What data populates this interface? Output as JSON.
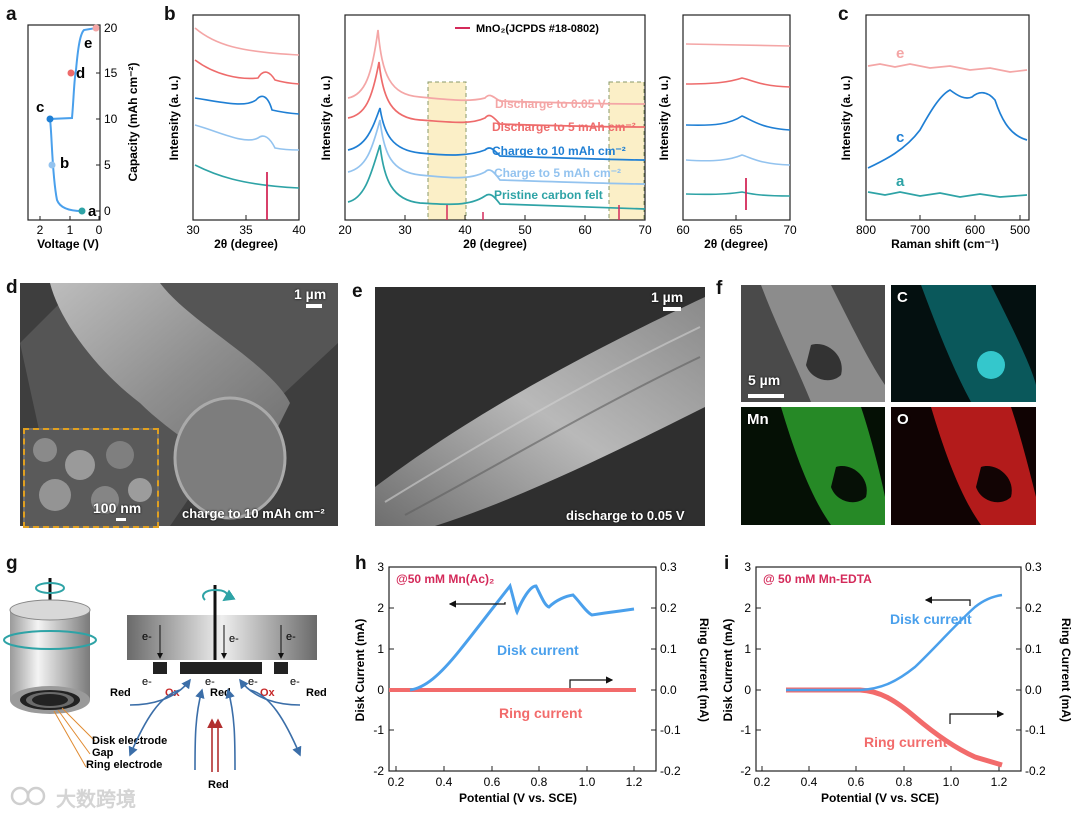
{
  "panels": {
    "a": "a",
    "b": "b",
    "c": "c",
    "d": "d",
    "e": "e",
    "f": "f",
    "g": "g",
    "h": "h",
    "i": "i"
  },
  "colors": {
    "pink": "#f4a6a6",
    "coral": "#ee6b6b",
    "blue": "#1f7fd4",
    "lightblue": "#93c3ef",
    "teal": "#2ea3a6",
    "crimson": "#d42a5a",
    "ring_red": "#f26b6b",
    "disk_blue": "#4aa0ec",
    "highlight": "#fbefc7"
  },
  "panel_a": {
    "xlabel": "Voltage (V)",
    "ylabel": "Capacity (mAh cm⁻²)",
    "xticks": [
      "2",
      "1",
      "0"
    ],
    "yticks": [
      "0",
      "5",
      "10",
      "15",
      "20"
    ],
    "points": [
      "a",
      "b",
      "c",
      "d",
      "e"
    ]
  },
  "panel_b": {
    "ylabel": "Intensity (a. u.)",
    "xlabel": "2θ (degree)",
    "left_xticks": [
      "30",
      "35",
      "40"
    ],
    "mid_xticks": [
      "20",
      "30",
      "40",
      "50",
      "60",
      "70"
    ],
    "right_xticks": [
      "60",
      "65",
      "70"
    ],
    "legend": "MnO₂(JCPDS #18-0802)",
    "curves": [
      "Discharge to 0.05 V",
      "Discharge to 5 mAh cm⁻²",
      "Charge to 10 mAh cm⁻²",
      "Charge to 5 mAh cm⁻²",
      "Pristine carbon felt"
    ]
  },
  "panel_c": {
    "xlabel": "Raman shift (cm⁻¹)",
    "ylabel": "Intensity (a. u.)",
    "xticks": [
      "800",
      "700",
      "600",
      "500"
    ],
    "curves": [
      "e",
      "c",
      "a"
    ]
  },
  "panel_d": {
    "scale": "1 µm",
    "inset_scale": "100 nm",
    "caption": "charge to 10 mAh cm⁻²"
  },
  "panel_e": {
    "scale": "1 µm",
    "caption": "discharge to 0.05 V"
  },
  "panel_f": {
    "scale": "5 µm",
    "maps": [
      "C",
      "Mn",
      "O"
    ]
  },
  "panel_g": {
    "labels": [
      "Disk electrode",
      "Gap",
      "Ring electrode"
    ],
    "electron": "e-",
    "red": "Red",
    "ox": "Ox"
  },
  "panel_h": {
    "title": "@50 mM Mn(Ac)₂",
    "disk": "Disk current",
    "ring": "Ring current"
  },
  "panel_i": {
    "title": "@ 50 mM Mn-EDTA",
    "disk": "Disk current",
    "ring": "Ring current"
  },
  "axes_hi": {
    "xlabel": "Potential (V vs. SCE)",
    "ylabel_left": "Disk Current (mA)",
    "ylabel_right": "Ring Current (mA)",
    "xticks": [
      "0.2",
      "0.4",
      "0.6",
      "0.8",
      "1.0",
      "1.2"
    ],
    "yticks_left": [
      "-2",
      "-1",
      "0",
      "1",
      "2",
      "3"
    ],
    "yticks_right": [
      "-0.2",
      "-0.1",
      "0.0",
      "0.1",
      "0.2",
      "0.3"
    ]
  },
  "watermark": "大数跨境"
}
